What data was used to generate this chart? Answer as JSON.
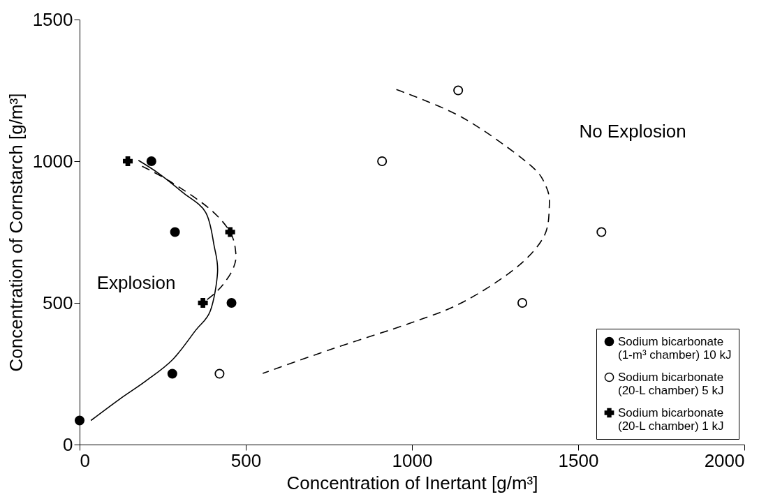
{
  "chart_data": {
    "type": "scatter",
    "xlabel": "Concentration of Inertant [g/m³]",
    "ylabel": "Concentration of Cornstarch [g/m³]",
    "xlim": [
      0,
      2000
    ],
    "xticks": [
      0,
      500,
      1000,
      1500,
      2000
    ],
    "ylim": [
      0,
      1500
    ],
    "yticks": [
      0,
      500,
      1000,
      1500
    ],
    "grid": false,
    "legend": "bottom right",
    "annotations": [
      "Explosion",
      "No Explosion"
    ],
    "series": [
      {
        "name": "Sodium bicarbonate (1-m³ chamber) 10 kJ",
        "color": "#000000",
        "marker": "circle",
        "x": [
          0,
          216,
          287,
          457,
          279
        ],
        "values": [
          85,
          1000,
          750,
          500,
          250
        ]
      },
      {
        "name": "Sodium bicarbonate (20-L chamber) 5 kJ",
        "color": "#ffffff",
        "marker": "circle",
        "x": [
          421,
          910,
          1139,
          1570,
          1332
        ],
        "values": [
          250,
          1000,
          1250,
          750,
          500
        ]
      },
      {
        "name": "Sodium bicarbonate (20-L chamber) 1 kJ",
        "color": "#000000",
        "marker": "cross",
        "x": [
          145,
          453,
          371
        ],
        "values": [
          1000,
          750,
          500
        ]
      },
      {
        "type": "line",
        "color": "#000000",
        "marker": "none",
        "line_style": "solid",
        "x": [
          34,
          120,
          200,
          280,
          349,
          393,
          415,
          405,
          379,
          310,
          239,
          177
        ],
        "values": [
          85,
          160,
          225,
          300,
          403,
          471,
          607,
          700,
          820,
          890,
          956,
          1003
        ]
      },
      {
        "type": "line",
        "color": "#000000",
        "marker": "none",
        "line_style": "dashed",
        "x": [
          188,
          269,
          386,
          452,
          470,
          463,
          437,
          408,
          371
        ],
        "values": [
          982,
          931,
          837,
          752,
          675,
          624,
          573,
          535,
          500
        ]
      },
      {
        "type": "line",
        "color": "#000000",
        "marker": "none",
        "line_style": "dashed",
        "x": [
          953,
          1152,
          1348,
          1403,
          1413,
          1395,
          1309,
          1152,
          996,
          761,
          551
        ],
        "values": [
          1253,
          1154,
          994,
          912,
          835,
          730,
          620,
          502,
          429,
          338,
          251
        ]
      }
    ]
  }
}
